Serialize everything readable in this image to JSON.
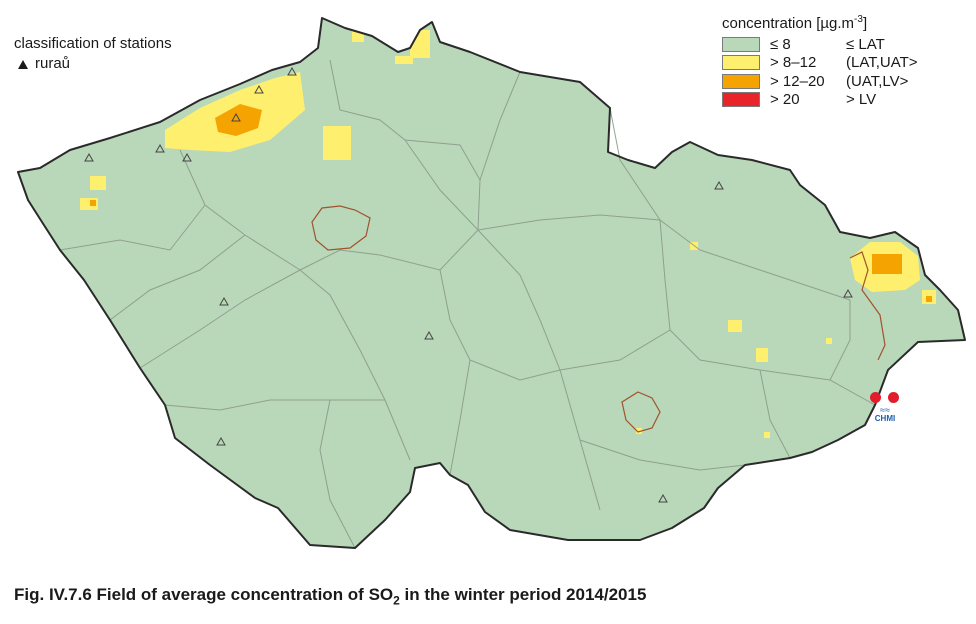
{
  "caption": {
    "prefix": "Fig. IV.7.6  Field of average concentration of SO",
    "subscript": "2",
    "suffix": " in the winter period 2014/2015"
  },
  "station_legend": {
    "title": "classification of stations",
    "items": [
      {
        "label": "ruraů",
        "symbol": "triangle-icon"
      }
    ]
  },
  "concentration_legend": {
    "title_main": "concentration [µg.m",
    "title_sup": "-3",
    "title_end": "]",
    "classes": [
      {
        "label": "≤ 8",
        "limit": "≤ LAT",
        "color": "#b9d8b9"
      },
      {
        "label": "> 8–12",
        "limit": "(LAT,UAT>",
        "color": "#ffef6e"
      },
      {
        "label": "> 12–20",
        "limit": "(UAT,LV>",
        "color": "#f5a300"
      },
      {
        "label": "> 20",
        "limit": "> LV",
        "color": "#e8232a"
      }
    ]
  },
  "logo": {
    "text": "CHMI"
  },
  "colors": {
    "country_fill": "#b9d8b9",
    "border": "#2a2a2a",
    "region_lines": "#8a9a8a",
    "city_border": "#a0522d"
  }
}
